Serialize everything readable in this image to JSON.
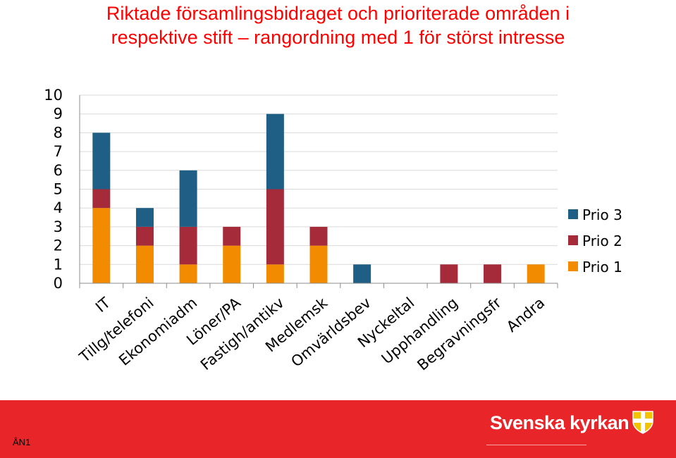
{
  "title_lines": [
    "Riktade församlingsbidraget och prioriterade områden i",
    "respektive stift – rangordning med 1 för störst intresse"
  ],
  "chart_data": {
    "type": "bar",
    "stacked": true,
    "categories": [
      "IT",
      "Tillg/telefoni",
      "Ekonomiadm",
      "Löner/PA",
      "Fastigh/antikv",
      "Medlemsk",
      "Omvärldsbev",
      "Nyckeltal",
      "Upphandling",
      "Begravningsfr",
      "Andra"
    ],
    "series": [
      {
        "name": "Prio 1",
        "color": "#f28b00",
        "values": [
          4,
          2,
          1,
          2,
          1,
          2,
          0,
          0,
          0,
          0,
          1
        ]
      },
      {
        "name": "Prio 2",
        "color": "#a52a3a",
        "values": [
          1,
          1,
          2,
          1,
          4,
          1,
          0,
          0,
          1,
          1,
          0
        ]
      },
      {
        "name": "Prio 3",
        "color": "#1f5f85",
        "values": [
          3,
          1,
          3,
          0,
          4,
          0,
          1,
          0,
          0,
          0,
          0
        ]
      }
    ],
    "ylim": [
      0,
      10
    ],
    "yticks": [
      0,
      1,
      2,
      3,
      4,
      5,
      6,
      7,
      8,
      9,
      10
    ],
    "grid": true,
    "legend": "right",
    "title": "",
    "xlabel": "",
    "ylabel": ""
  },
  "footer": {
    "code": "ÅN1",
    "brand": "Svenska kyrkan",
    "brand_color": "#ffffff",
    "bar_color": "#e8262a"
  }
}
